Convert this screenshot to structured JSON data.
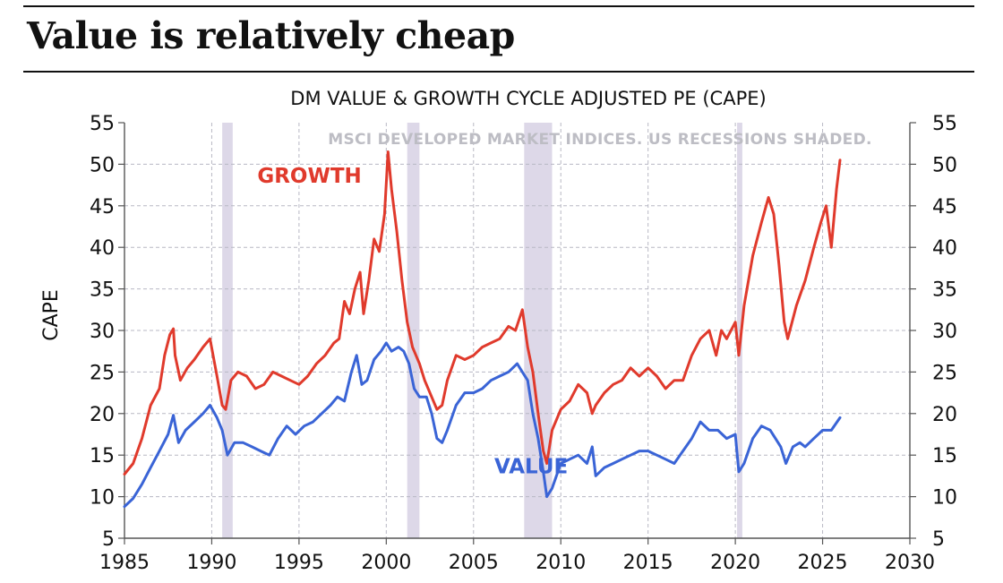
{
  "page": {
    "title": "Value is relatively cheap"
  },
  "chart_data": {
    "type": "line",
    "title": "DM VALUE & GROWTH CYCLE ADJUSTED PE (CAPE)",
    "subtitle": "MSCI DEVELOPED MARKET INDICES.  US RECESSIONS SHADED.",
    "ylabel": "CAPE",
    "xlabel": "",
    "xlim": [
      1985,
      2030
    ],
    "ylim": [
      5,
      55
    ],
    "x_ticks": [
      "1985",
      "1990",
      "1995",
      "2000",
      "2005",
      "2010",
      "2015",
      "2020",
      "2025",
      "2030"
    ],
    "y_ticks": [
      "5",
      "10",
      "15",
      "20",
      "25",
      "30",
      "35",
      "40",
      "45",
      "50",
      "55"
    ],
    "grid": true,
    "recessions": [
      [
        1990.6,
        1991.2
      ],
      [
        2001.2,
        2001.9
      ],
      [
        2007.9,
        2009.5
      ],
      [
        2020.1,
        2020.4
      ]
    ],
    "colors": {
      "growth": "#e03a2c",
      "value": "#3a64d6",
      "recession": "#ddd8e8",
      "grid": "#b8b8c4"
    },
    "series": [
      {
        "name": "GROWTH",
        "label_at": [
          1995.6,
          47.8
        ],
        "x": [
          1985,
          1985.5,
          1986,
          1986.5,
          1987,
          1987.3,
          1987.6,
          1987.8,
          1987.9,
          1988.2,
          1988.6,
          1989,
          1989.5,
          1989.9,
          1990.3,
          1990.6,
          1990.8,
          1991.1,
          1991.5,
          1992,
          1992.5,
          1993,
          1993.5,
          1994,
          1994.5,
          1995,
          1995.5,
          1996,
          1996.5,
          1997,
          1997.3,
          1997.6,
          1997.9,
          1998.2,
          1998.5,
          1998.7,
          1999,
          1999.3,
          1999.6,
          1999.9,
          2000.1,
          2000.3,
          2000.6,
          2000.9,
          2001.2,
          2001.5,
          2001.9,
          2002.2,
          2002.6,
          2002.9,
          2003.2,
          2003.5,
          2004,
          2004.5,
          2005,
          2005.5,
          2006,
          2006.5,
          2007,
          2007.4,
          2007.8,
          2008.1,
          2008.4,
          2008.7,
          2009,
          2009.2,
          2009.5,
          2010,
          2010.5,
          2011,
          2011.5,
          2011.8,
          2012,
          2012.5,
          2013,
          2013.5,
          2014,
          2014.5,
          2015,
          2015.5,
          2016,
          2016.5,
          2017,
          2017.5,
          2018,
          2018.5,
          2018.9,
          2019.2,
          2019.5,
          2020,
          2020.2,
          2020.5,
          2021,
          2021.5,
          2021.9,
          2022.2,
          2022.5,
          2022.8,
          2023,
          2023.5,
          2024,
          2024.5,
          2024.9,
          2025.2,
          2025.5,
          2025.8,
          2026
        ],
        "values": [
          12.7,
          14,
          17,
          21,
          23,
          27,
          29.5,
          30.2,
          27,
          24,
          25.5,
          26.5,
          28,
          29,
          24.5,
          21,
          20.5,
          24,
          25,
          24.5,
          23,
          23.5,
          25,
          24.5,
          24,
          23.5,
          24.5,
          26,
          27,
          28.5,
          29,
          33.5,
          32,
          35,
          37,
          32,
          36,
          41,
          39.5,
          44,
          51.5,
          47,
          42,
          36,
          31,
          28,
          26,
          24,
          22,
          20.5,
          21,
          24,
          27,
          26.5,
          27,
          28,
          28.5,
          29,
          30.5,
          30,
          32.5,
          28,
          25,
          20,
          15.5,
          14,
          18,
          20.5,
          21.5,
          23.5,
          22.5,
          20,
          21,
          22.5,
          23.5,
          24,
          25.5,
          24.5,
          25.5,
          24.5,
          23,
          24,
          24,
          27,
          29,
          30,
          27,
          30,
          29,
          31,
          27,
          33,
          39,
          43,
          46,
          44,
          38,
          31,
          29,
          33,
          36,
          40,
          43,
          45,
          40,
          47,
          50.5
        ]
      },
      {
        "name": "VALUE",
        "label_at": [
          2008.3,
          12.8
        ],
        "x": [
          1985,
          1985.5,
          1986,
          1986.5,
          1987,
          1987.5,
          1987.8,
          1988.1,
          1988.5,
          1989,
          1989.5,
          1989.9,
          1990.3,
          1990.6,
          1990.9,
          1991.3,
          1991.8,
          1992.3,
          1992.8,
          1993.3,
          1993.8,
          1994.3,
          1994.8,
          1995.3,
          1995.8,
          1996.3,
          1996.8,
          1997.2,
          1997.6,
          1998,
          1998.3,
          1998.6,
          1998.9,
          1999.3,
          1999.7,
          2000,
          2000.3,
          2000.7,
          2001,
          2001.3,
          2001.6,
          2001.9,
          2002.3,
          2002.6,
          2002.9,
          2003.2,
          2003.5,
          2004,
          2004.5,
          2005,
          2005.5,
          2006,
          2006.5,
          2007,
          2007.5,
          2007.8,
          2008.1,
          2008.4,
          2008.7,
          2009,
          2009.2,
          2009.5,
          2010,
          2010.5,
          2011,
          2011.5,
          2011.8,
          2012,
          2012.5,
          2013,
          2013.5,
          2014,
          2014.5,
          2015,
          2015.5,
          2016,
          2016.5,
          2017,
          2017.5,
          2018,
          2018.5,
          2019,
          2019.5,
          2020,
          2020.2,
          2020.5,
          2021,
          2021.5,
          2022,
          2022.3,
          2022.6,
          2022.9,
          2023.3,
          2023.7,
          2024,
          2024.5,
          2025,
          2025.5,
          2026
        ],
        "values": [
          8.8,
          9.8,
          11.5,
          13.5,
          15.5,
          17.5,
          19.8,
          16.5,
          18,
          19,
          20,
          21,
          19.5,
          18,
          15,
          16.5,
          16.5,
          16,
          15.5,
          15,
          17,
          18.5,
          17.5,
          18.5,
          19,
          20,
          21,
          22,
          21.5,
          25,
          27,
          23.5,
          24,
          26.5,
          27.5,
          28.5,
          27.5,
          28,
          27.5,
          26,
          23,
          22,
          22,
          20,
          17,
          16.5,
          18,
          21,
          22.5,
          22.5,
          23,
          24,
          24.5,
          25,
          26,
          25,
          24,
          20,
          17,
          13,
          10,
          11,
          14,
          14.5,
          15,
          14,
          16,
          12.5,
          13.5,
          14,
          14.5,
          15,
          15.5,
          15.5,
          15,
          14.5,
          14,
          15.5,
          17,
          19,
          18,
          18,
          17,
          17.5,
          13,
          14,
          17,
          18.5,
          18,
          17,
          16,
          14,
          16,
          16.5,
          16,
          17,
          18,
          18,
          19.5
        ]
      }
    ]
  }
}
